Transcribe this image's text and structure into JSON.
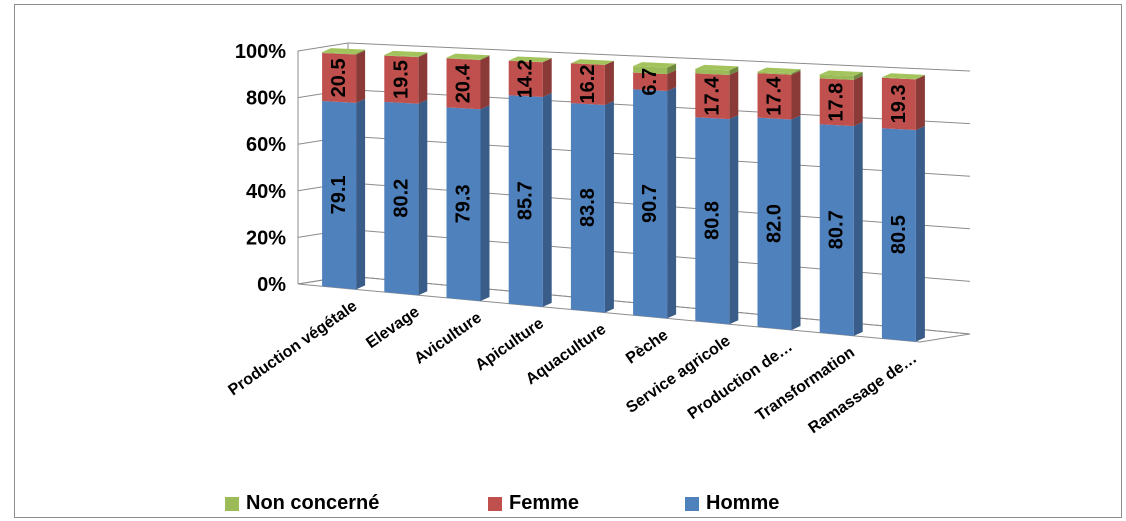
{
  "chart_data": {
    "type": "bar",
    "stacked": true,
    "three_d": true,
    "title": "",
    "xlabel": "",
    "ylabel": "",
    "ylim": [
      0,
      100
    ],
    "y_ticks": [
      "0%",
      "20%",
      "40%",
      "60%",
      "80%",
      "100%"
    ],
    "grid": true,
    "legend_position": "bottom",
    "categories": [
      "Production végétale",
      "Elevage",
      "Aviculture",
      "Apiculture",
      "Aquaculture",
      "Pèche",
      "Service agricole",
      "Production de…",
      "Transformation",
      "Ramassage de…"
    ],
    "series": [
      {
        "name": "Homme",
        "color": "#4f81bd",
        "values": [
          79.1,
          80.2,
          79.3,
          85.7,
          83.8,
          90.7,
          80.8,
          82.0,
          80.7,
          80.5
        ],
        "labels": [
          "79.1",
          "80.2",
          "79.3",
          "85.7",
          "83.8",
          "90.7",
          "80.8",
          "82.0",
          "80.7",
          "80.5"
        ]
      },
      {
        "name": "Femme",
        "color": "#c0504d",
        "values": [
          20.5,
          19.5,
          20.4,
          14.2,
          16.2,
          6.7,
          17.4,
          17.4,
          17.8,
          19.3
        ],
        "labels": [
          "20.5",
          "19.5",
          "20.4",
          "14.2",
          "16.2",
          "6.7",
          "17.4",
          "17.4",
          "17.8",
          "19.3"
        ]
      },
      {
        "name": "Non concerné",
        "color": "#9bbb59",
        "values": [
          0.4,
          0.3,
          0.3,
          0.1,
          0.0,
          2.6,
          1.8,
          0.6,
          1.5,
          0.2
        ],
        "labels": []
      }
    ],
    "legend_order": [
      "Non concerné",
      "Femme",
      "Homme"
    ]
  }
}
